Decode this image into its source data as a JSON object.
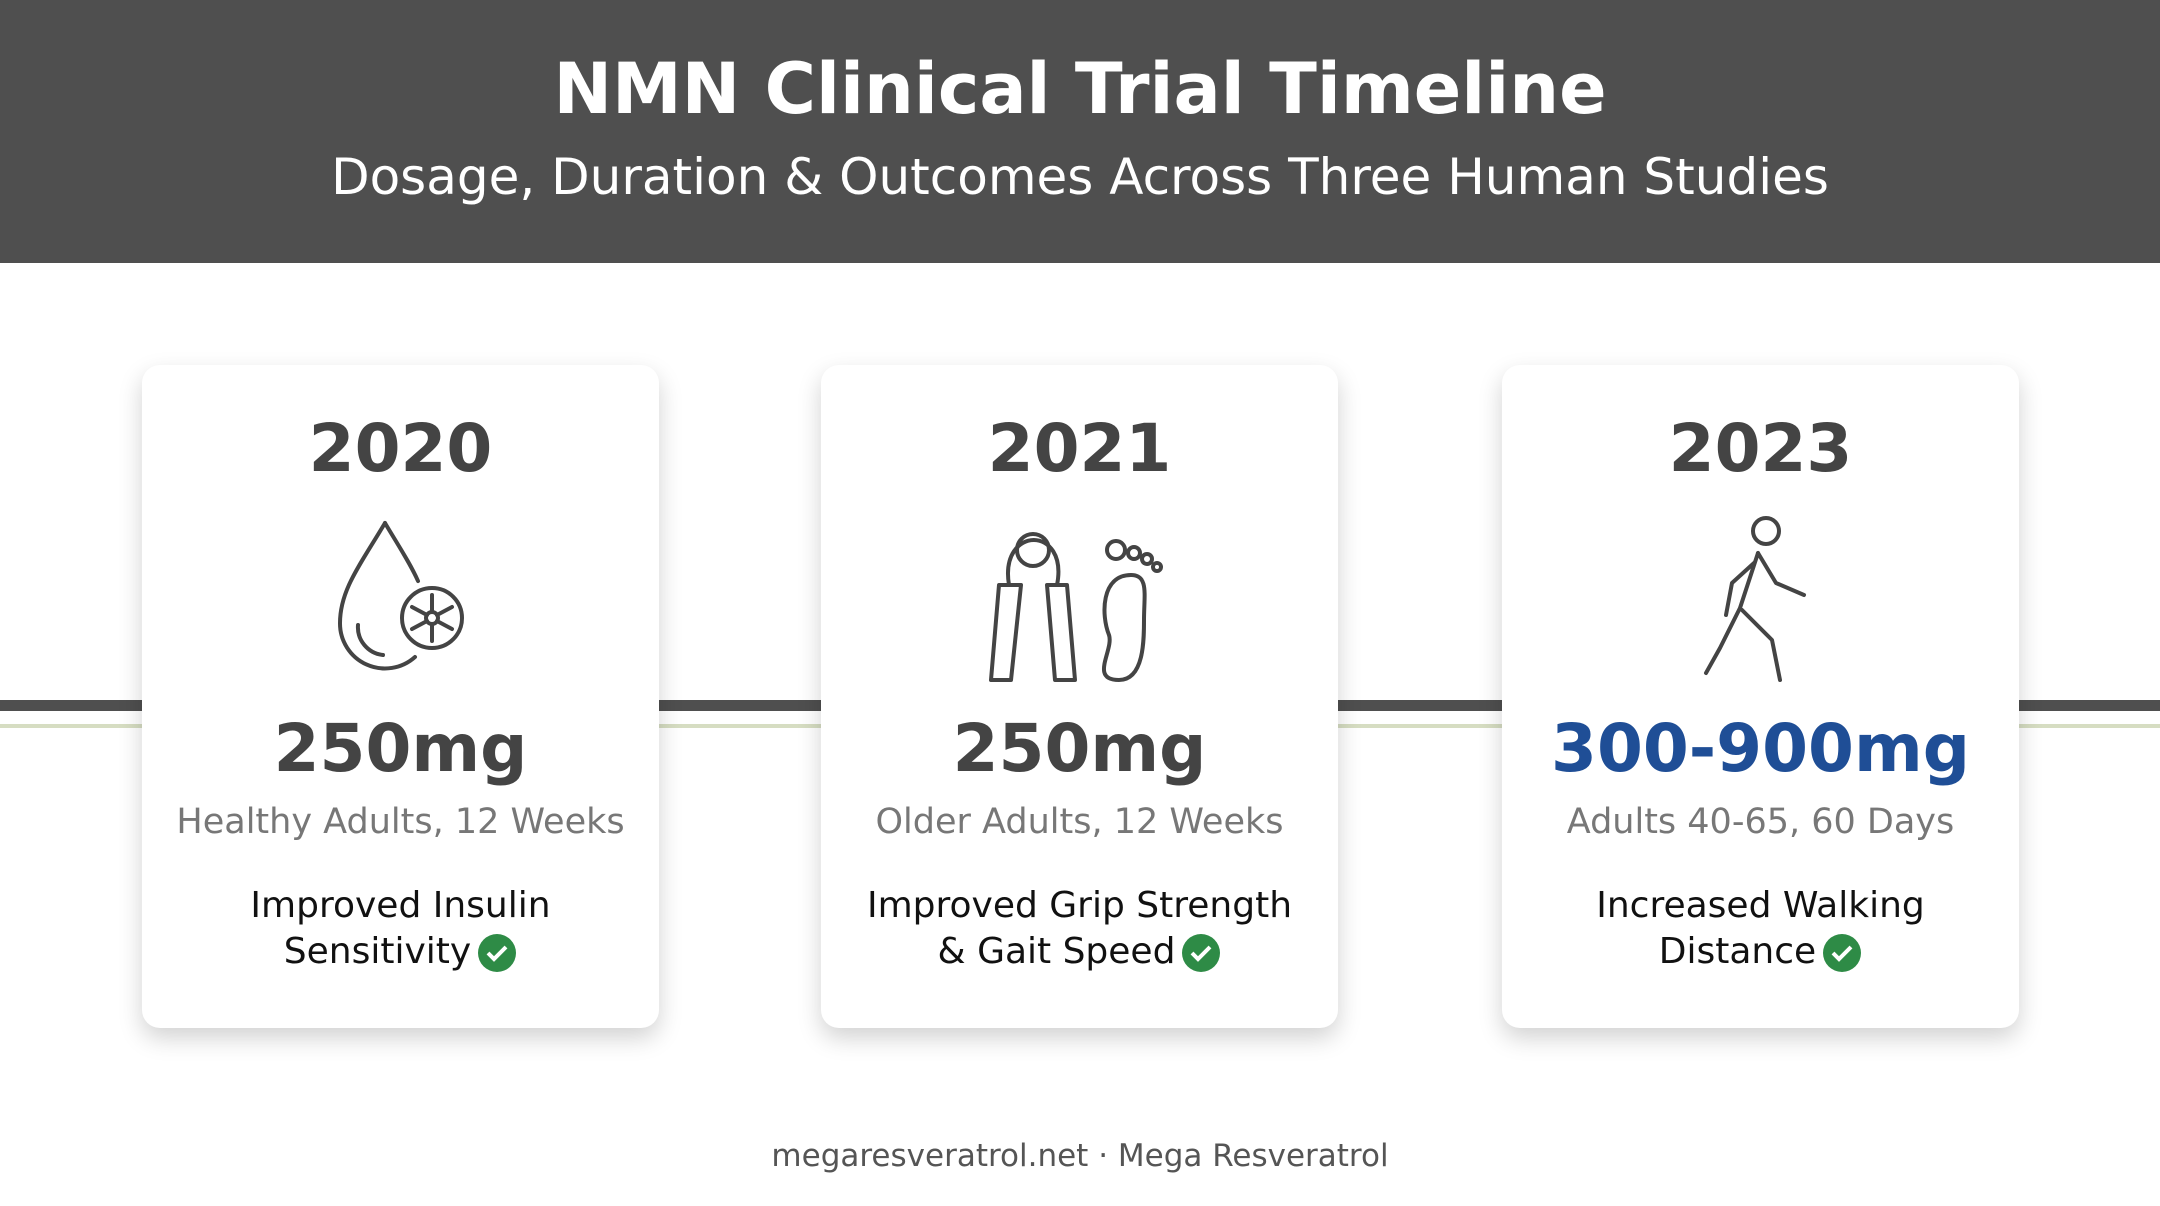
{
  "header": {
    "title": "NMN Clinical Trial Timeline",
    "subtitle": "Dosage, Duration & Outcomes Across Three Human Studies"
  },
  "cards": [
    {
      "year": "2020",
      "dose": "250mg",
      "population": "Healthy Adults, 12 Weeks",
      "outcome": "Improved Insulin Sensitivity"
    },
    {
      "year": "2021",
      "dose": "250mg",
      "population": "Older Adults, 12 Weeks",
      "outcome": "Improved Grip Strength & Gait Speed"
    },
    {
      "year": "2023",
      "dose": "300-900mg",
      "population": "Adults 40-65, 60 Days",
      "outcome": "Increased Walking Distance"
    }
  ],
  "footer": "megaresveratrol.net · Mega Resveratrol"
}
